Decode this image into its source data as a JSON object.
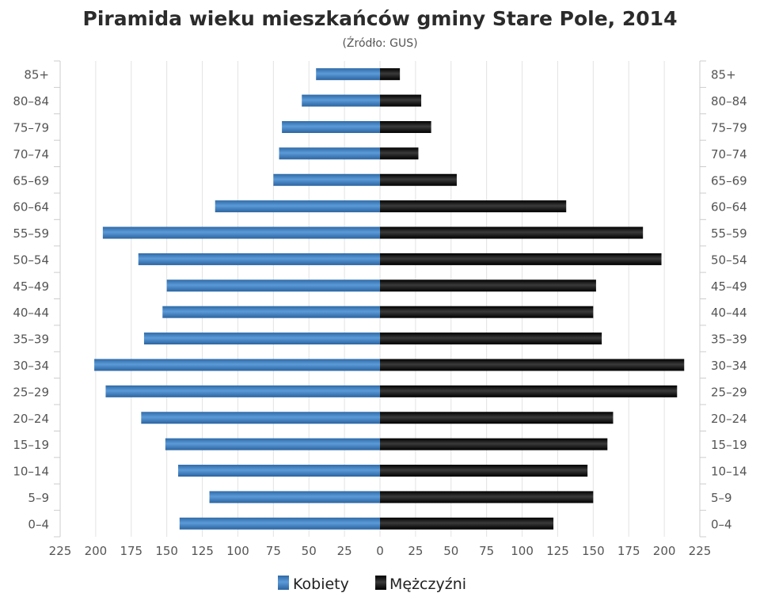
{
  "chart_data": {
    "type": "bar",
    "title": "Piramida wieku mieszkańców gminy Stare Pole, 2014",
    "subtitle": "(Źródło: GUS)",
    "categories": [
      "85+",
      "80–84",
      "75–79",
      "70–74",
      "65–69",
      "60–64",
      "55–59",
      "50–54",
      "45–49",
      "40–44",
      "35–39",
      "30–34",
      "25–29",
      "20–24",
      "15–19",
      "10–14",
      "5–9",
      "0–4"
    ],
    "series": [
      {
        "name": "Kobiety",
        "color": "#3d7fc1",
        "values": [
          45,
          55,
          69,
          71,
          75,
          116,
          195,
          170,
          150,
          153,
          166,
          201,
          193,
          168,
          151,
          142,
          120,
          141
        ]
      },
      {
        "name": "Mężczyźni",
        "color": "#1a1a1a",
        "values": [
          14,
          29,
          36,
          27,
          54,
          131,
          185,
          198,
          152,
          150,
          156,
          214,
          209,
          164,
          160,
          146,
          150,
          122
        ]
      }
    ],
    "xlim": [
      -225,
      225
    ],
    "xticks": [
      "225",
      "200",
      "175",
      "150",
      "125",
      "100",
      "75",
      "50",
      "25",
      "0",
      "25",
      "50",
      "75",
      "100",
      "125",
      "150",
      "175",
      "200",
      "225"
    ],
    "grid": true,
    "legend": "bottom"
  }
}
